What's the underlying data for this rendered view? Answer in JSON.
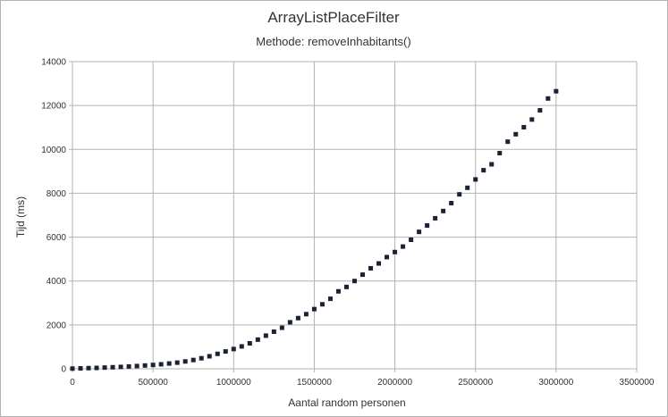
{
  "chart_data": {
    "type": "scatter",
    "title": "ArrayListPlaceFilter",
    "subtitle": "Methode: removeInhabitants()",
    "xlabel": "Aantal random personen",
    "ylabel": "Tijd (ms)",
    "xlim": [
      0,
      3500000
    ],
    "ylim": [
      0,
      14000
    ],
    "x_ticks": [
      0,
      500000,
      1000000,
      1500000,
      2000000,
      2500000,
      3000000,
      3500000
    ],
    "x_tick_labels": [
      "0",
      "500000",
      "1000000",
      "1500000",
      "2000000",
      "2500000",
      "3000000",
      "3500000"
    ],
    "y_ticks": [
      0,
      2000,
      4000,
      6000,
      8000,
      10000,
      12000,
      14000
    ],
    "y_tick_labels": [
      "0",
      "2000",
      "4000",
      "6000",
      "8000",
      "10000",
      "12000",
      "14000"
    ],
    "grid": true,
    "legend": "none",
    "marker_color": "#1a2233",
    "series": [
      {
        "x": [
          0,
          50000,
          100000,
          150000,
          200000,
          250000,
          300000,
          350000,
          400000,
          450000,
          500000,
          550000,
          600000,
          650000,
          700000,
          750000,
          800000,
          850000,
          900000,
          950000,
          1000000,
          1050000,
          1100000,
          1150000,
          1200000,
          1250000,
          1300000,
          1350000,
          1400000,
          1450000,
          1500000,
          1550000,
          1600000,
          1650000,
          1700000,
          1750000,
          1800000,
          1850000,
          1900000,
          1950000,
          2000000,
          2050000,
          2100000,
          2150000,
          2200000,
          2250000,
          2300000,
          2350000,
          2400000,
          2450000,
          2500000,
          2550000,
          2600000,
          2650000,
          2700000,
          2750000,
          2800000,
          2850000,
          2900000,
          2950000,
          3000000
        ],
        "values": [
          10,
          20,
          30,
          40,
          55,
          70,
          85,
          105,
          125,
          150,
          175,
          205,
          240,
          280,
          335,
          400,
          480,
          570,
          680,
          790,
          900,
          1020,
          1160,
          1330,
          1510,
          1690,
          1870,
          2120,
          2310,
          2490,
          2720,
          2940,
          3190,
          3530,
          3730,
          4000,
          4290,
          4580,
          4800,
          5090,
          5320,
          5570,
          5880,
          6240,
          6530,
          6860,
          7190,
          7550,
          7950,
          8250,
          8630,
          9050,
          9320,
          9830,
          10350,
          10690,
          11010,
          11360,
          11780,
          12320,
          12650
        ]
      }
    ]
  }
}
